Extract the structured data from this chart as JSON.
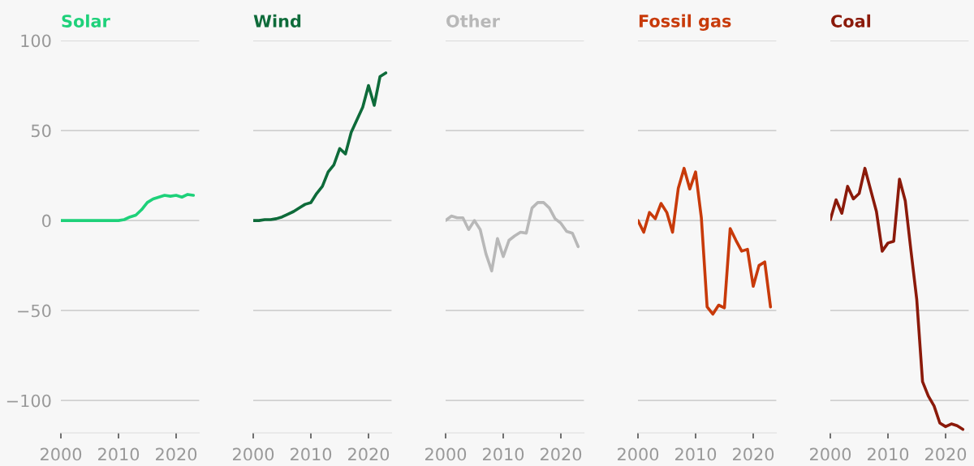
{
  "chart_data": [
    {
      "type": "line",
      "title": "Solar",
      "x": [
        2000,
        2001,
        2002,
        2003,
        2004,
        2005,
        2006,
        2007,
        2008,
        2009,
        2010,
        2011,
        2012,
        2013,
        2014,
        2015,
        2016,
        2017,
        2018,
        2019,
        2020,
        2021,
        2022,
        2023
      ],
      "series": [
        {
          "color": "#1ed17a",
          "values": [
            0,
            0,
            0,
            0,
            0,
            0,
            0,
            0,
            0,
            0,
            0,
            0.5,
            2,
            3,
            6,
            10,
            12,
            13,
            14,
            13.5,
            14,
            13,
            14.5,
            14
          ]
        }
      ],
      "xlim": [
        2000,
        2024
      ],
      "ylim": [
        -118,
        100
      ],
      "xticks": [
        2000,
        2010,
        2020
      ],
      "yticks": [
        -100,
        -50,
        0,
        50,
        100
      ],
      "grid": "y",
      "marker": "none",
      "line_style": "solid"
    },
    {
      "type": "line",
      "title": "Wind",
      "x": [
        2000,
        2001,
        2002,
        2003,
        2004,
        2005,
        2006,
        2007,
        2008,
        2009,
        2010,
        2011,
        2012,
        2013,
        2014,
        2015,
        2016,
        2017,
        2018,
        2019,
        2020,
        2021,
        2022,
        2023
      ],
      "series": [
        {
          "color": "#0e6b3a",
          "values": [
            0,
            0,
            0.5,
            0.5,
            1,
            2,
            3.5,
            5,
            7,
            9,
            10,
            15,
            19,
            27,
            31,
            40,
            37,
            49,
            56,
            63,
            75,
            64,
            80,
            82
          ]
        }
      ],
      "xlim": [
        2000,
        2024
      ],
      "ylim": [
        -118,
        100
      ],
      "xticks": [
        2000,
        2010,
        2020
      ],
      "yticks": [
        -100,
        -50,
        0,
        50,
        100
      ],
      "grid": "y",
      "tick_labels": "x",
      "marker": "none",
      "line_style": "solid"
    },
    {
      "type": "line",
      "title": "Other",
      "x": [
        2000,
        2001,
        2002,
        2003,
        2004,
        2005,
        2006,
        2007,
        2008,
        2009,
        2010,
        2011,
        2012,
        2013,
        2014,
        2015,
        2016,
        2017,
        2018,
        2019,
        2020,
        2021,
        2022,
        2023
      ],
      "series": [
        {
          "color": "#b8b8b8",
          "values": [
            0,
            2.5,
            1.5,
            1.5,
            -5,
            0,
            -5,
            -18.5,
            -28,
            -10,
            -20,
            -11,
            -8.5,
            -6.5,
            -7,
            7,
            10,
            10,
            7,
            1,
            -1.5,
            -6,
            -7,
            -14.5
          ]
        }
      ],
      "xlim": [
        2000,
        2024
      ],
      "ylim": [
        -118,
        100
      ],
      "xticks": [
        2000,
        2010,
        2020
      ],
      "yticks": [
        -100,
        -50,
        0,
        50,
        100
      ],
      "grid": "y",
      "tick_labels": "x",
      "marker": "none",
      "line_style": "solid"
    },
    {
      "type": "line",
      "title": "Fossil gas",
      "x": [
        2000,
        2001,
        2002,
        2003,
        2004,
        2005,
        2006,
        2007,
        2008,
        2009,
        2010,
        2011,
        2012,
        2013,
        2014,
        2015,
        2016,
        2017,
        2018,
        2019,
        2020,
        2021,
        2022,
        2023
      ],
      "series": [
        {
          "color": "#c83a0a",
          "values": [
            0,
            -6.5,
            4.5,
            1,
            9.5,
            4.5,
            -6.5,
            18,
            29,
            17.5,
            27,
            1.5,
            -48,
            -52,
            -47,
            -48.5,
            -4.5,
            -11,
            -17,
            -16,
            -36.5,
            -25,
            -23,
            -48
          ]
        }
      ],
      "xlim": [
        2000,
        2024
      ],
      "ylim": [
        -118,
        100
      ],
      "xticks": [
        2000,
        2010,
        2020
      ],
      "yticks": [
        -100,
        -50,
        0,
        50,
        100
      ],
      "grid": "y",
      "tick_labels": "x",
      "marker": "none",
      "line_style": "solid"
    },
    {
      "type": "line",
      "title": "Coal",
      "x": [
        2000,
        2001,
        2002,
        2003,
        2004,
        2005,
        2006,
        2007,
        2008,
        2009,
        2010,
        2011,
        2012,
        2013,
        2014,
        2015,
        2016,
        2017,
        2018,
        2019,
        2020,
        2021,
        2022,
        2023
      ],
      "series": [
        {
          "color": "#8b1a0a",
          "values": [
            0.5,
            11.5,
            4,
            19,
            12,
            15,
            29,
            17,
            5,
            -17,
            -12.5,
            -11.5,
            23,
            11,
            -17,
            -44,
            -89.5,
            -97.5,
            -103,
            -112.5,
            -114.5,
            -113,
            -114,
            -116
          ]
        }
      ],
      "xlim": [
        2000,
        2024
      ],
      "ylim": [
        -118,
        100
      ],
      "xticks": [
        2000,
        2010,
        2020
      ],
      "yticks": [
        -100,
        -50,
        0,
        50,
        100
      ],
      "grid": "y",
      "tick_labels": "x",
      "marker": "none",
      "line_style": "solid"
    }
  ]
}
